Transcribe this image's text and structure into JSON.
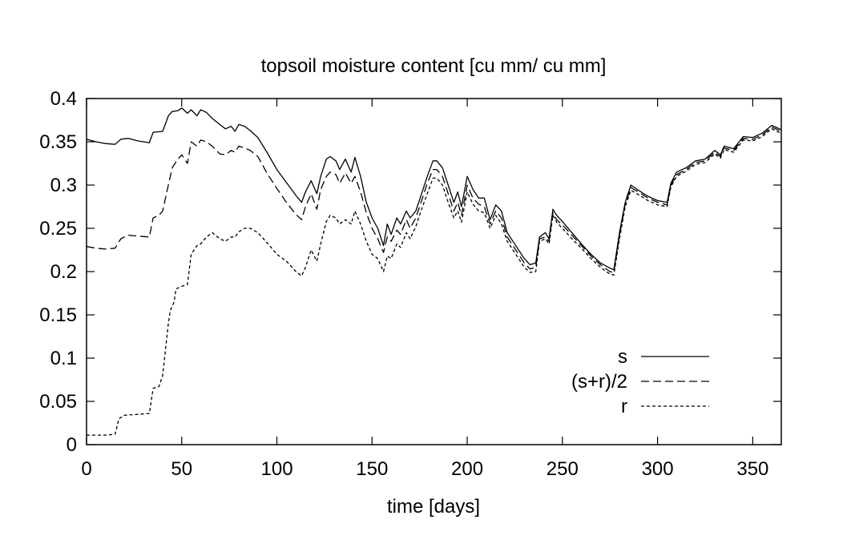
{
  "chart_data": {
    "type": "line",
    "title": "topsoil moisture content [cu mm/ cu mm]",
    "xlabel": "time [days]",
    "ylabel": "",
    "xlim": [
      0,
      365
    ],
    "ylim": [
      0,
      0.4
    ],
    "xticks": [
      0,
      50,
      100,
      150,
      200,
      250,
      300,
      350
    ],
    "xtick_labels": [
      "0",
      "50",
      "100",
      "150",
      "200",
      "250",
      "300",
      "350"
    ],
    "yticks": [
      0,
      0.05,
      0.1,
      0.15,
      0.2,
      0.25,
      0.3,
      0.35,
      0.4
    ],
    "ytick_labels": [
      "0",
      "0.05",
      "0.1",
      "0.15",
      "0.2",
      "0.25",
      "0.3",
      "0.35",
      "0.4"
    ],
    "grid": false,
    "legend_position": "bottom-right",
    "series": [
      {
        "name": "s",
        "style": "solid",
        "color": "#000000",
        "x": [
          0,
          5,
          10,
          15,
          18,
          22,
          27,
          33,
          35,
          40,
          43,
          45,
          48,
          50,
          53,
          55,
          58,
          60,
          63,
          66,
          70,
          73,
          76,
          78,
          80,
          83,
          86,
          90,
          95,
          100,
          105,
          110,
          113,
          115,
          118,
          121,
          123,
          126,
          128,
          131,
          133,
          136,
          139,
          141,
          144,
          147,
          150,
          153,
          156,
          158,
          160,
          163,
          165,
          168,
          170,
          173,
          176,
          179,
          182,
          184,
          187,
          190,
          193,
          195,
          197,
          200,
          203,
          206,
          209,
          212,
          215,
          218,
          221,
          224,
          227,
          230,
          233,
          236,
          238,
          241,
          243,
          245,
          247,
          250,
          255,
          260,
          265,
          270,
          275,
          277,
          280,
          283,
          286,
          290,
          295,
          300,
          305,
          307,
          310,
          315,
          320,
          325,
          330,
          333,
          335,
          340,
          345,
          350,
          355,
          360,
          365
        ],
        "values": [
          0.353,
          0.35,
          0.348,
          0.347,
          0.353,
          0.354,
          0.351,
          0.349,
          0.361,
          0.362,
          0.38,
          0.385,
          0.386,
          0.389,
          0.383,
          0.387,
          0.38,
          0.387,
          0.384,
          0.377,
          0.37,
          0.365,
          0.368,
          0.362,
          0.37,
          0.368,
          0.363,
          0.355,
          0.337,
          0.318,
          0.303,
          0.288,
          0.28,
          0.292,
          0.305,
          0.29,
          0.31,
          0.33,
          0.333,
          0.328,
          0.318,
          0.33,
          0.315,
          0.332,
          0.31,
          0.28,
          0.262,
          0.25,
          0.23,
          0.255,
          0.243,
          0.262,
          0.255,
          0.27,
          0.262,
          0.27,
          0.29,
          0.31,
          0.328,
          0.328,
          0.32,
          0.3,
          0.28,
          0.292,
          0.275,
          0.31,
          0.295,
          0.285,
          0.285,
          0.26,
          0.277,
          0.27,
          0.245,
          0.235,
          0.225,
          0.215,
          0.208,
          0.21,
          0.24,
          0.245,
          0.238,
          0.272,
          0.265,
          0.258,
          0.245,
          0.232,
          0.22,
          0.21,
          0.204,
          0.202,
          0.245,
          0.28,
          0.3,
          0.294,
          0.287,
          0.282,
          0.28,
          0.302,
          0.315,
          0.32,
          0.328,
          0.33,
          0.34,
          0.335,
          0.345,
          0.342,
          0.356,
          0.355,
          0.36,
          0.369,
          0.364
        ]
      },
      {
        "name": "(s+r)/2",
        "style": "dashed",
        "color": "#000000",
        "x": [
          0,
          5,
          10,
          15,
          18,
          22,
          27,
          33,
          35,
          38,
          40,
          43,
          45,
          48,
          50,
          53,
          55,
          58,
          60,
          63,
          66,
          70,
          73,
          76,
          78,
          80,
          83,
          86,
          90,
          95,
          100,
          105,
          110,
          113,
          115,
          118,
          121,
          123,
          126,
          128,
          131,
          133,
          136,
          139,
          141,
          144,
          147,
          150,
          153,
          156,
          158,
          160,
          163,
          165,
          168,
          170,
          173,
          176,
          179,
          182,
          184,
          187,
          190,
          193,
          195,
          197,
          200,
          203,
          206,
          209,
          212,
          215,
          218,
          221,
          224,
          227,
          230,
          233,
          236,
          238,
          241,
          243,
          245,
          247,
          250,
          255,
          260,
          265,
          270,
          275,
          277,
          280,
          283,
          286,
          290,
          295,
          300,
          305,
          307,
          310,
          315,
          320,
          325,
          330,
          333,
          335,
          340,
          345,
          350,
          355,
          360,
          365
        ],
        "values": [
          0.229,
          0.227,
          0.226,
          0.227,
          0.238,
          0.242,
          0.241,
          0.24,
          0.262,
          0.265,
          0.27,
          0.3,
          0.32,
          0.33,
          0.335,
          0.325,
          0.35,
          0.345,
          0.352,
          0.35,
          0.345,
          0.336,
          0.335,
          0.34,
          0.338,
          0.345,
          0.343,
          0.34,
          0.333,
          0.313,
          0.296,
          0.28,
          0.266,
          0.26,
          0.275,
          0.29,
          0.272,
          0.295,
          0.31,
          0.315,
          0.312,
          0.302,
          0.314,
          0.302,
          0.31,
          0.292,
          0.268,
          0.25,
          0.238,
          0.222,
          0.24,
          0.235,
          0.248,
          0.243,
          0.26,
          0.25,
          0.262,
          0.282,
          0.302,
          0.318,
          0.318,
          0.31,
          0.29,
          0.27,
          0.28,
          0.265,
          0.3,
          0.285,
          0.278,
          0.275,
          0.255,
          0.27,
          0.262,
          0.24,
          0.23,
          0.22,
          0.21,
          0.203,
          0.205,
          0.238,
          0.24,
          0.235,
          0.268,
          0.26,
          0.254,
          0.242,
          0.23,
          0.218,
          0.208,
          0.2,
          0.199,
          0.242,
          0.278,
          0.297,
          0.292,
          0.285,
          0.28,
          0.277,
          0.3,
          0.312,
          0.318,
          0.326,
          0.328,
          0.338,
          0.333,
          0.343,
          0.34,
          0.354,
          0.353,
          0.358,
          0.367,
          0.362
        ]
      },
      {
        "name": "r",
        "style": "dotted",
        "color": "#000000",
        "x": [
          0,
          5,
          10,
          15,
          17,
          20,
          27,
          33,
          35,
          38,
          40,
          43,
          44,
          46,
          47,
          50,
          53,
          55,
          58,
          60,
          63,
          66,
          70,
          73,
          76,
          78,
          80,
          83,
          86,
          90,
          95,
          100,
          105,
          110,
          113,
          115,
          118,
          121,
          123,
          126,
          128,
          131,
          133,
          136,
          139,
          141,
          144,
          147,
          150,
          153,
          156,
          158,
          160,
          163,
          165,
          168,
          170,
          173,
          176,
          179,
          182,
          184,
          187,
          190,
          193,
          195,
          197,
          200,
          203,
          206,
          209,
          212,
          215,
          218,
          221,
          224,
          227,
          230,
          233,
          236,
          238,
          241,
          243,
          245,
          247,
          250,
          255,
          260,
          265,
          270,
          275,
          277,
          280,
          283,
          286,
          290,
          295,
          300,
          305,
          307,
          310,
          315,
          320,
          325,
          330,
          333,
          335,
          340,
          345,
          350,
          355,
          360,
          365
        ],
        "values": [
          0.011,
          0.011,
          0.011,
          0.012,
          0.03,
          0.034,
          0.035,
          0.036,
          0.065,
          0.067,
          0.08,
          0.14,
          0.155,
          0.165,
          0.18,
          0.183,
          0.185,
          0.22,
          0.23,
          0.232,
          0.24,
          0.245,
          0.238,
          0.235,
          0.24,
          0.24,
          0.246,
          0.25,
          0.25,
          0.245,
          0.233,
          0.22,
          0.212,
          0.2,
          0.195,
          0.205,
          0.225,
          0.212,
          0.232,
          0.258,
          0.265,
          0.262,
          0.255,
          0.26,
          0.255,
          0.27,
          0.255,
          0.235,
          0.22,
          0.215,
          0.2,
          0.218,
          0.215,
          0.232,
          0.228,
          0.245,
          0.238,
          0.252,
          0.272,
          0.29,
          0.308,
          0.308,
          0.3,
          0.28,
          0.262,
          0.27,
          0.257,
          0.292,
          0.278,
          0.27,
          0.268,
          0.25,
          0.265,
          0.255,
          0.235,
          0.225,
          0.215,
          0.205,
          0.199,
          0.2,
          0.235,
          0.238,
          0.232,
          0.265,
          0.257,
          0.25,
          0.238,
          0.227,
          0.215,
          0.205,
          0.197,
          0.196,
          0.238,
          0.275,
          0.294,
          0.289,
          0.282,
          0.277,
          0.275,
          0.298,
          0.31,
          0.316,
          0.324,
          0.326,
          0.336,
          0.331,
          0.341,
          0.338,
          0.352,
          0.351,
          0.356,
          0.365,
          0.36
        ]
      }
    ]
  }
}
